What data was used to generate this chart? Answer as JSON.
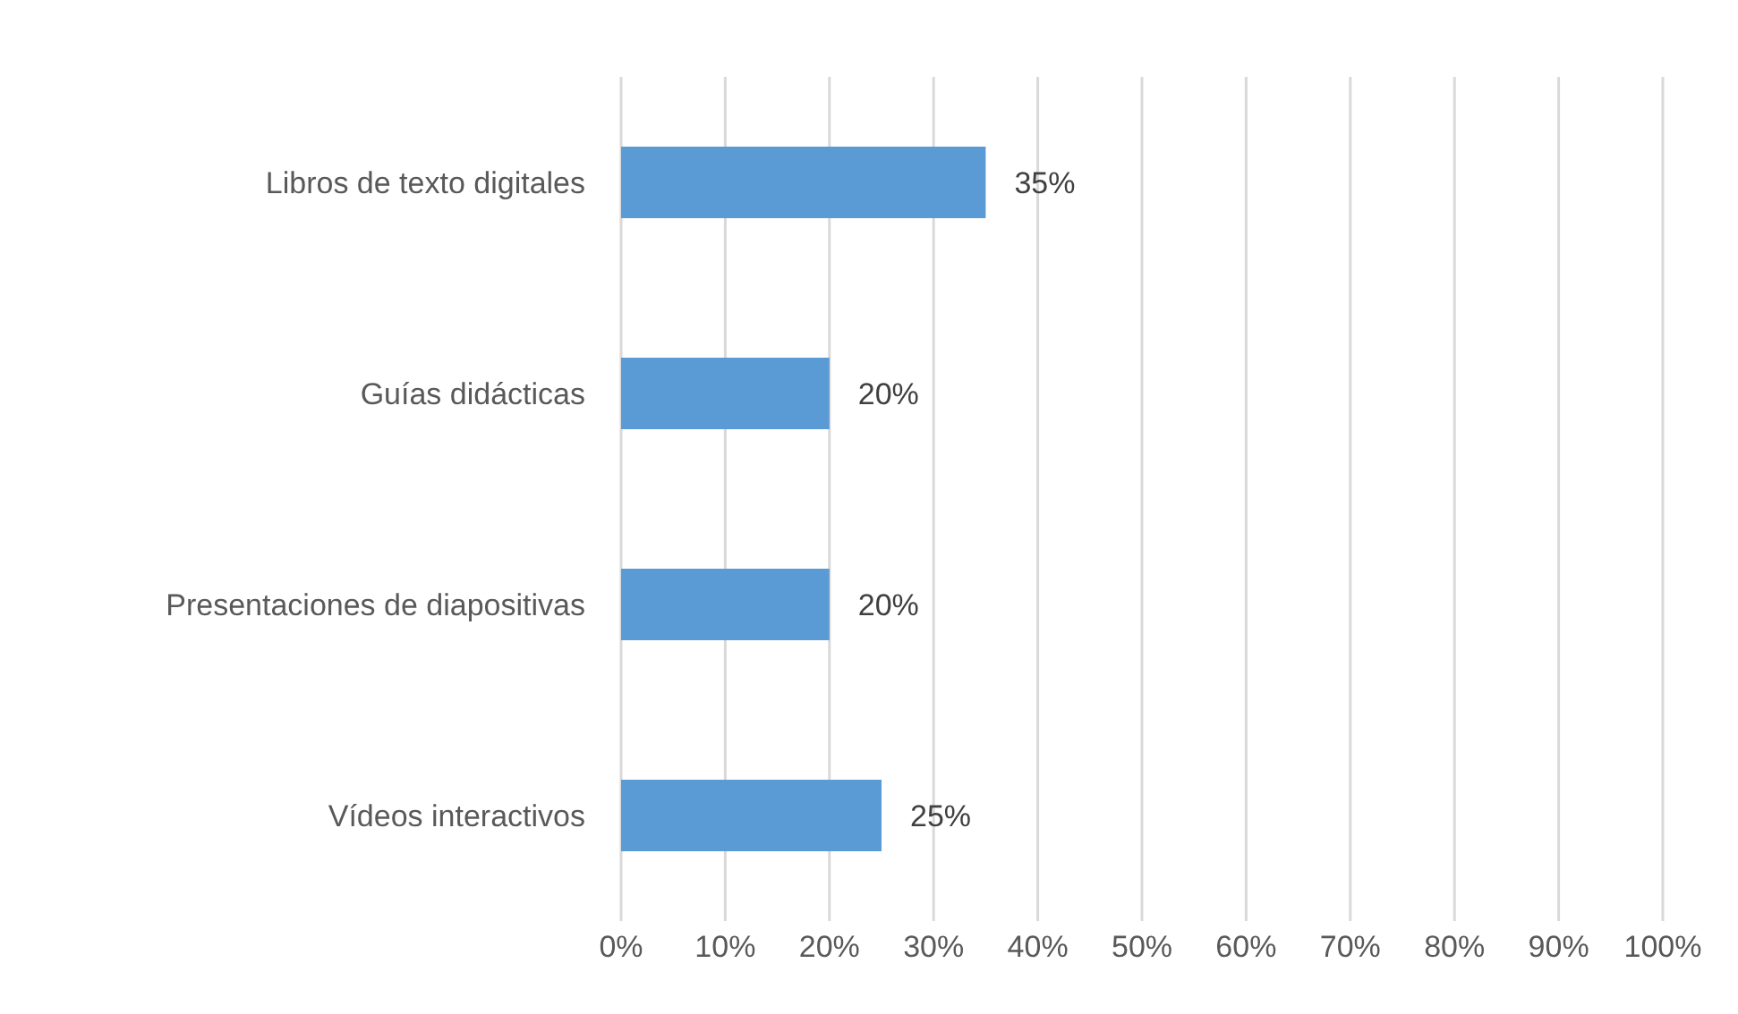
{
  "chart_data": {
    "type": "bar",
    "orientation": "horizontal",
    "categories": [
      "Libros de texto digitales",
      "Guías didácticas",
      "Presentaciones de diapositivas",
      "Vídeos interactivos"
    ],
    "values": [
      35,
      20,
      20,
      25
    ],
    "value_labels": [
      "35%",
      "20%",
      "20%",
      "25%"
    ],
    "color": "#5b9bd5",
    "xlim": [
      0,
      100
    ],
    "xticks": [
      {
        "value": 0,
        "label": "0%"
      },
      {
        "value": 10,
        "label": "10%"
      },
      {
        "value": 20,
        "label": "20%"
      },
      {
        "value": 30,
        "label": "30%"
      },
      {
        "value": 40,
        "label": "40%"
      },
      {
        "value": 50,
        "label": "50%"
      },
      {
        "value": 60,
        "label": "60%"
      },
      {
        "value": 70,
        "label": "70%"
      },
      {
        "value": 80,
        "label": "80%"
      },
      {
        "value": 90,
        "label": "90%"
      },
      {
        "value": 100,
        "label": "100%"
      }
    ],
    "grid": "x",
    "legend": false
  }
}
